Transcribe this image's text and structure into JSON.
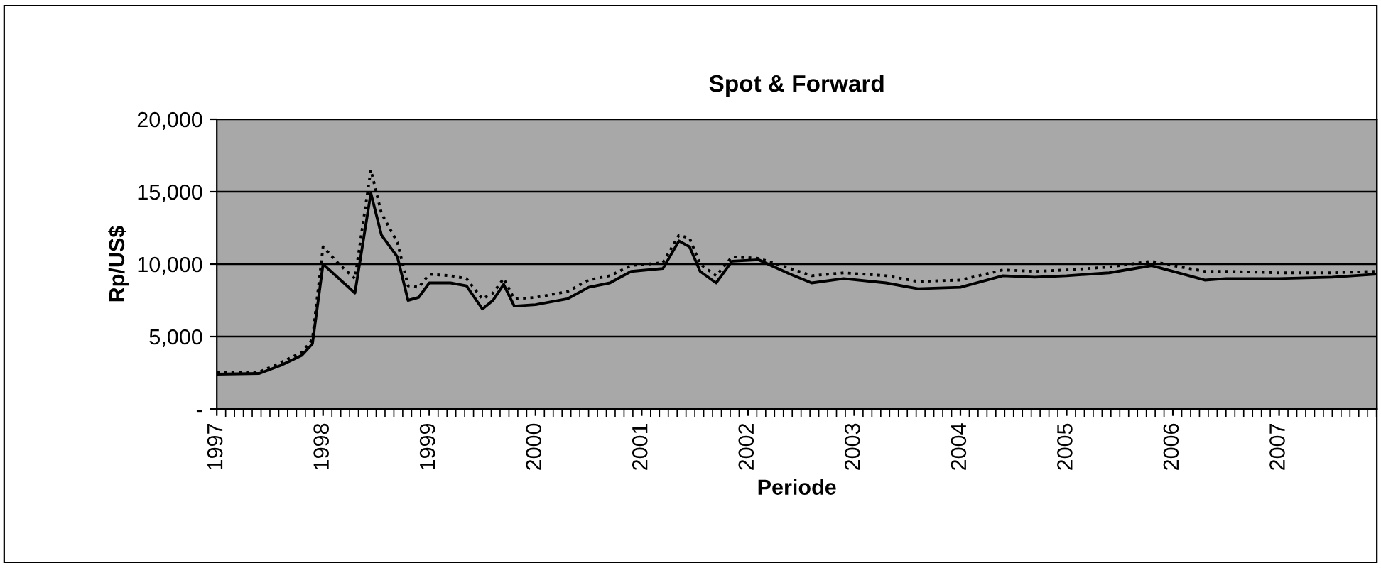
{
  "chart_data": {
    "type": "line",
    "title": "Spot & Forward",
    "xlabel": "Periode",
    "ylabel": "Rp/US$",
    "xlim": [
      1997,
      2007.92
    ],
    "xticks": [
      {
        "value": 1997,
        "label": "1997"
      },
      {
        "value": 1998,
        "label": "1998"
      },
      {
        "value": 1999,
        "label": "1999"
      },
      {
        "value": 2000,
        "label": "2000"
      },
      {
        "value": 2001,
        "label": "2001"
      },
      {
        "value": 2002,
        "label": "2002"
      },
      {
        "value": 2003,
        "label": "2003"
      },
      {
        "value": 2004,
        "label": "2004"
      },
      {
        "value": 2005,
        "label": "2005"
      },
      {
        "value": 2006,
        "label": "2006"
      },
      {
        "value": 2007,
        "label": "2007"
      }
    ],
    "ylim": [
      0,
      20000
    ],
    "yticks": [
      {
        "value": 0,
        "label": "-"
      },
      {
        "value": 5000,
        "label": "5,000"
      },
      {
        "value": 10000,
        "label": "10,000"
      },
      {
        "value": 15000,
        "label": "15,000"
      },
      {
        "value": 20000,
        "label": "20,000"
      }
    ],
    "grid": "y",
    "legend": false,
    "marker": "none",
    "series": [
      {
        "color": "#000000",
        "line_style": "solid",
        "x": [
          1997.0,
          1997.4,
          1997.6,
          1997.8,
          1997.9,
          1998.0,
          1998.15,
          1998.3,
          1998.45,
          1998.55,
          1998.7,
          1998.8,
          1998.9,
          1999.0,
          1999.2,
          1999.35,
          1999.5,
          1999.6,
          1999.7,
          1999.8,
          2000.0,
          2000.3,
          2000.5,
          2000.7,
          2000.9,
          2001.2,
          2001.35,
          2001.45,
          2001.55,
          2001.7,
          2001.85,
          2002.1,
          2002.4,
          2002.6,
          2002.9,
          2003.3,
          2003.6,
          2004.0,
          2004.4,
          2004.7,
          2005.0,
          2005.4,
          2005.8,
          2006.0,
          2006.3,
          2006.5,
          2007.0,
          2007.5,
          2007.9
        ],
        "values": [
          2400,
          2450,
          3000,
          3700,
          4500,
          10000,
          9000,
          8000,
          14900,
          12000,
          10500,
          7500,
          7700,
          8700,
          8700,
          8500,
          6900,
          7500,
          8600,
          7100,
          7200,
          7600,
          8400,
          8700,
          9500,
          9700,
          11600,
          11200,
          9500,
          8700,
          10200,
          10300,
          9300,
          8700,
          9000,
          8700,
          8300,
          8400,
          9200,
          9100,
          9200,
          9400,
          9900,
          9500,
          8900,
          9000,
          9000,
          9100,
          9300
        ]
      },
      {
        "color": "#000000",
        "line_style": "dotted",
        "x": [
          1997.0,
          1997.4,
          1997.6,
          1997.8,
          1997.9,
          1998.0,
          1998.15,
          1998.3,
          1998.45,
          1998.55,
          1998.7,
          1998.8,
          1998.9,
          1999.0,
          1999.2,
          1999.35,
          1999.5,
          1999.6,
          1999.7,
          1999.8,
          2000.0,
          2000.3,
          2000.5,
          2000.7,
          2000.9,
          2001.2,
          2001.35,
          2001.45,
          2001.55,
          2001.7,
          2001.85,
          2002.1,
          2002.4,
          2002.6,
          2002.9,
          2003.3,
          2003.6,
          2004.0,
          2004.4,
          2004.7,
          2005.0,
          2005.4,
          2005.8,
          2006.0,
          2006.3,
          2006.5,
          2007.0,
          2007.5,
          2007.9
        ],
        "values": [
          2500,
          2550,
          3200,
          3900,
          4800,
          11200,
          10000,
          9000,
          16500,
          13500,
          11500,
          8500,
          8400,
          9300,
          9200,
          9000,
          7600,
          8000,
          9000,
          7600,
          7700,
          8100,
          8900,
          9200,
          9900,
          10100,
          12000,
          11800,
          10000,
          9200,
          10500,
          10400,
          9700,
          9200,
          9400,
          9200,
          8800,
          8900,
          9600,
          9500,
          9600,
          9800,
          10200,
          9900,
          9500,
          9500,
          9400,
          9400,
          9500
        ]
      }
    ]
  }
}
